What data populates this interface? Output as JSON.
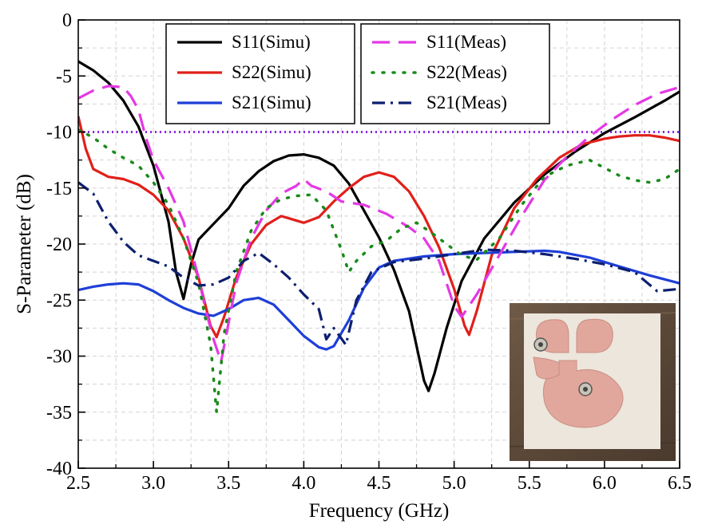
{
  "chart_data": {
    "type": "line",
    "title": "",
    "xlabel": "Frequency (GHz)",
    "ylabel": "S-Parameter (dB)",
    "xlim": [
      2.5,
      6.5
    ],
    "ylim": [
      -40,
      0
    ],
    "xticks": [
      2.5,
      3.0,
      3.5,
      4.0,
      4.5,
      5.0,
      5.5,
      6.0,
      6.5
    ],
    "xtick_labels": [
      "2.5",
      "3.0",
      "3.5",
      "4.0",
      "4.5",
      "5.0",
      "5.5",
      "6.0",
      "6.5"
    ],
    "yticks": [
      0,
      -5,
      -10,
      -15,
      -20,
      -25,
      -30,
      -35,
      -40
    ],
    "ytick_labels": [
      "0",
      "-5",
      "-10",
      "-15",
      "-20",
      "-25",
      "-30",
      "-35",
      "-40"
    ],
    "grid": true,
    "reference_line": {
      "y": -10,
      "color": "#8a2be2",
      "style": "dotted"
    },
    "legend": {
      "placement": "top-center",
      "columns": 2
    },
    "series": [
      {
        "name": "S11(Simu)",
        "color": "#000000",
        "dash": "solid",
        "points": [
          [
            2.5,
            -3.7
          ],
          [
            2.6,
            -4.5
          ],
          [
            2.7,
            -5.6
          ],
          [
            2.8,
            -7.2
          ],
          [
            2.9,
            -9.5
          ],
          [
            3.0,
            -13.0
          ],
          [
            3.1,
            -18.0
          ],
          [
            3.15,
            -22.5
          ],
          [
            3.2,
            -24.9
          ],
          [
            3.25,
            -21.8
          ],
          [
            3.3,
            -19.6
          ],
          [
            3.4,
            -18.2
          ],
          [
            3.5,
            -16.8
          ],
          [
            3.6,
            -14.8
          ],
          [
            3.7,
            -13.5
          ],
          [
            3.8,
            -12.6
          ],
          [
            3.9,
            -12.1
          ],
          [
            4.0,
            -12.0
          ],
          [
            4.1,
            -12.3
          ],
          [
            4.2,
            -13.0
          ],
          [
            4.3,
            -14.6
          ],
          [
            4.4,
            -17.0
          ],
          [
            4.5,
            -19.4
          ],
          [
            4.6,
            -22.3
          ],
          [
            4.7,
            -26.0
          ],
          [
            4.8,
            -32.2
          ],
          [
            4.83,
            -33.1
          ],
          [
            4.87,
            -31.5
          ],
          [
            4.95,
            -27.5
          ],
          [
            5.05,
            -23.3
          ],
          [
            5.2,
            -19.5
          ],
          [
            5.4,
            -16.3
          ],
          [
            5.6,
            -13.8
          ],
          [
            5.8,
            -11.8
          ],
          [
            6.0,
            -10.1
          ],
          [
            6.2,
            -8.7
          ],
          [
            6.4,
            -7.2
          ],
          [
            6.5,
            -6.4
          ]
        ]
      },
      {
        "name": "S22(Simu)",
        "color": "#e0201a",
        "dash": "solid",
        "points": [
          [
            2.5,
            -8.6
          ],
          [
            2.55,
            -11.5
          ],
          [
            2.6,
            -13.3
          ],
          [
            2.7,
            -14.0
          ],
          [
            2.8,
            -14.2
          ],
          [
            2.9,
            -14.7
          ],
          [
            3.0,
            -15.6
          ],
          [
            3.1,
            -17.0
          ],
          [
            3.2,
            -19.5
          ],
          [
            3.3,
            -23.0
          ],
          [
            3.38,
            -27.3
          ],
          [
            3.42,
            -28.3
          ],
          [
            3.47,
            -26.5
          ],
          [
            3.55,
            -23.0
          ],
          [
            3.65,
            -20.0
          ],
          [
            3.75,
            -18.3
          ],
          [
            3.85,
            -17.5
          ],
          [
            3.9,
            -17.7
          ],
          [
            4.0,
            -18.1
          ],
          [
            4.1,
            -17.6
          ],
          [
            4.2,
            -16.2
          ],
          [
            4.3,
            -15.0
          ],
          [
            4.4,
            -14.0
          ],
          [
            4.5,
            -13.6
          ],
          [
            4.6,
            -14.0
          ],
          [
            4.7,
            -15.3
          ],
          [
            4.8,
            -17.5
          ],
          [
            4.9,
            -20.3
          ],
          [
            5.0,
            -24.0
          ],
          [
            5.07,
            -27.3
          ],
          [
            5.1,
            -28.1
          ],
          [
            5.15,
            -26.0
          ],
          [
            5.25,
            -21.0
          ],
          [
            5.4,
            -16.8
          ],
          [
            5.55,
            -14.2
          ],
          [
            5.7,
            -12.3
          ],
          [
            5.85,
            -11.1
          ],
          [
            6.0,
            -10.6
          ],
          [
            6.1,
            -10.4
          ],
          [
            6.2,
            -10.3
          ],
          [
            6.3,
            -10.3
          ],
          [
            6.4,
            -10.5
          ],
          [
            6.5,
            -10.8
          ]
        ]
      },
      {
        "name": "S21(Simu)",
        "color": "#1f3fd8",
        "dash": "solid",
        "points": [
          [
            2.5,
            -24.1
          ],
          [
            2.6,
            -23.8
          ],
          [
            2.7,
            -23.6
          ],
          [
            2.8,
            -23.5
          ],
          [
            2.9,
            -23.6
          ],
          [
            3.0,
            -24.2
          ],
          [
            3.1,
            -25.0
          ],
          [
            3.2,
            -25.7
          ],
          [
            3.3,
            -26.2
          ],
          [
            3.4,
            -26.4
          ],
          [
            3.5,
            -25.8
          ],
          [
            3.6,
            -25.0
          ],
          [
            3.7,
            -24.8
          ],
          [
            3.8,
            -25.4
          ],
          [
            3.9,
            -26.8
          ],
          [
            4.0,
            -28.2
          ],
          [
            4.1,
            -29.2
          ],
          [
            4.15,
            -29.4
          ],
          [
            4.2,
            -29.1
          ],
          [
            4.3,
            -26.8
          ],
          [
            4.4,
            -23.9
          ],
          [
            4.5,
            -22.1
          ],
          [
            4.6,
            -21.5
          ],
          [
            4.8,
            -21.1
          ],
          [
            5.0,
            -20.9
          ],
          [
            5.2,
            -20.8
          ],
          [
            5.4,
            -20.7
          ],
          [
            5.6,
            -20.6
          ],
          [
            5.7,
            -20.7
          ],
          [
            5.9,
            -21.2
          ],
          [
            6.1,
            -22.0
          ],
          [
            6.3,
            -22.8
          ],
          [
            6.5,
            -23.5
          ]
        ]
      },
      {
        "name": "S11(Meas)",
        "color": "#e438e4",
        "dash": "dashed",
        "points": [
          [
            2.5,
            -7.0
          ],
          [
            2.6,
            -6.3
          ],
          [
            2.7,
            -5.9
          ],
          [
            2.8,
            -6.0
          ],
          [
            2.85,
            -6.8
          ],
          [
            2.9,
            -8.0
          ],
          [
            2.95,
            -10.5
          ],
          [
            3.0,
            -12.5
          ],
          [
            3.1,
            -15.0
          ],
          [
            3.2,
            -18.0
          ],
          [
            3.25,
            -20.5
          ],
          [
            3.3,
            -23.0
          ],
          [
            3.35,
            -26.0
          ],
          [
            3.4,
            -28.5
          ],
          [
            3.45,
            -30.5
          ],
          [
            3.5,
            -27.0
          ],
          [
            3.55,
            -23.5
          ],
          [
            3.65,
            -19.5
          ],
          [
            3.75,
            -17.0
          ],
          [
            3.85,
            -15.5
          ],
          [
            3.95,
            -14.8
          ],
          [
            4.0,
            -14.2
          ],
          [
            4.05,
            -14.8
          ],
          [
            4.15,
            -15.3
          ],
          [
            4.25,
            -16.2
          ],
          [
            4.4,
            -16.5
          ],
          [
            4.55,
            -17.3
          ],
          [
            4.7,
            -18.5
          ],
          [
            4.8,
            -19.5
          ],
          [
            4.9,
            -21.5
          ],
          [
            5.0,
            -25.5
          ],
          [
            5.05,
            -26.5
          ],
          [
            5.15,
            -24.5
          ],
          [
            5.3,
            -21.0
          ],
          [
            5.45,
            -17.5
          ],
          [
            5.6,
            -14.3
          ],
          [
            5.75,
            -12.2
          ],
          [
            5.9,
            -10.4
          ],
          [
            6.05,
            -8.9
          ],
          [
            6.2,
            -7.6
          ],
          [
            6.35,
            -6.6
          ],
          [
            6.5,
            -6.0
          ]
        ]
      },
      {
        "name": "S22(Meas)",
        "color": "#1a8a1a",
        "dash": "dotted",
        "points": [
          [
            2.5,
            -9.8
          ],
          [
            2.6,
            -10.5
          ],
          [
            2.7,
            -11.5
          ],
          [
            2.8,
            -12.3
          ],
          [
            2.9,
            -13.0
          ],
          [
            3.0,
            -14.5
          ],
          [
            3.1,
            -16.5
          ],
          [
            3.2,
            -19.5
          ],
          [
            3.3,
            -23.5
          ],
          [
            3.38,
            -29.0
          ],
          [
            3.42,
            -35.0
          ],
          [
            3.47,
            -28.0
          ],
          [
            3.55,
            -22.5
          ],
          [
            3.65,
            -18.8
          ],
          [
            3.75,
            -16.8
          ],
          [
            3.85,
            -16.0
          ],
          [
            3.95,
            -15.7
          ],
          [
            4.05,
            -15.6
          ],
          [
            4.15,
            -17.0
          ],
          [
            4.25,
            -20.5
          ],
          [
            4.3,
            -22.5
          ],
          [
            4.35,
            -21.5
          ],
          [
            4.45,
            -20.2
          ],
          [
            4.55,
            -19.7
          ],
          [
            4.65,
            -18.6
          ],
          [
            4.75,
            -18.1
          ],
          [
            4.85,
            -19.0
          ],
          [
            4.95,
            -20.0
          ],
          [
            5.05,
            -21.0
          ],
          [
            5.15,
            -21.4
          ],
          [
            5.3,
            -19.5
          ],
          [
            5.45,
            -16.5
          ],
          [
            5.6,
            -14.0
          ],
          [
            5.75,
            -13.0
          ],
          [
            5.9,
            -12.5
          ],
          [
            6.0,
            -13.2
          ],
          [
            6.1,
            -13.9
          ],
          [
            6.2,
            -14.3
          ],
          [
            6.3,
            -14.5
          ],
          [
            6.4,
            -14.2
          ],
          [
            6.5,
            -13.3
          ]
        ]
      },
      {
        "name": "S21(Meas)",
        "color": "#0d1f70",
        "dash": "dashdot",
        "points": [
          [
            2.5,
            -14.5
          ],
          [
            2.6,
            -15.5
          ],
          [
            2.7,
            -18.0
          ],
          [
            2.8,
            -19.8
          ],
          [
            2.9,
            -21.0
          ],
          [
            3.0,
            -21.5
          ],
          [
            3.1,
            -22.0
          ],
          [
            3.2,
            -23.0
          ],
          [
            3.3,
            -23.7
          ],
          [
            3.4,
            -23.6
          ],
          [
            3.5,
            -23.0
          ],
          [
            3.6,
            -21.5
          ],
          [
            3.7,
            -20.8
          ],
          [
            3.8,
            -21.8
          ],
          [
            3.9,
            -23.0
          ],
          [
            4.0,
            -24.5
          ],
          [
            4.1,
            -25.8
          ],
          [
            4.15,
            -28.5
          ],
          [
            4.2,
            -27.5
          ],
          [
            4.28,
            -29.0
          ],
          [
            4.35,
            -25.0
          ],
          [
            4.45,
            -22.5
          ],
          [
            4.6,
            -21.6
          ],
          [
            4.8,
            -21.3
          ],
          [
            5.0,
            -20.9
          ],
          [
            5.2,
            -20.5
          ],
          [
            5.4,
            -20.6
          ],
          [
            5.6,
            -20.9
          ],
          [
            5.8,
            -21.3
          ],
          [
            6.0,
            -21.8
          ],
          [
            6.2,
            -22.5
          ],
          [
            6.35,
            -24.2
          ],
          [
            6.5,
            -24.0
          ]
        ]
      }
    ],
    "inset_photo": {
      "subject": "antenna-prototype-photo"
    }
  }
}
